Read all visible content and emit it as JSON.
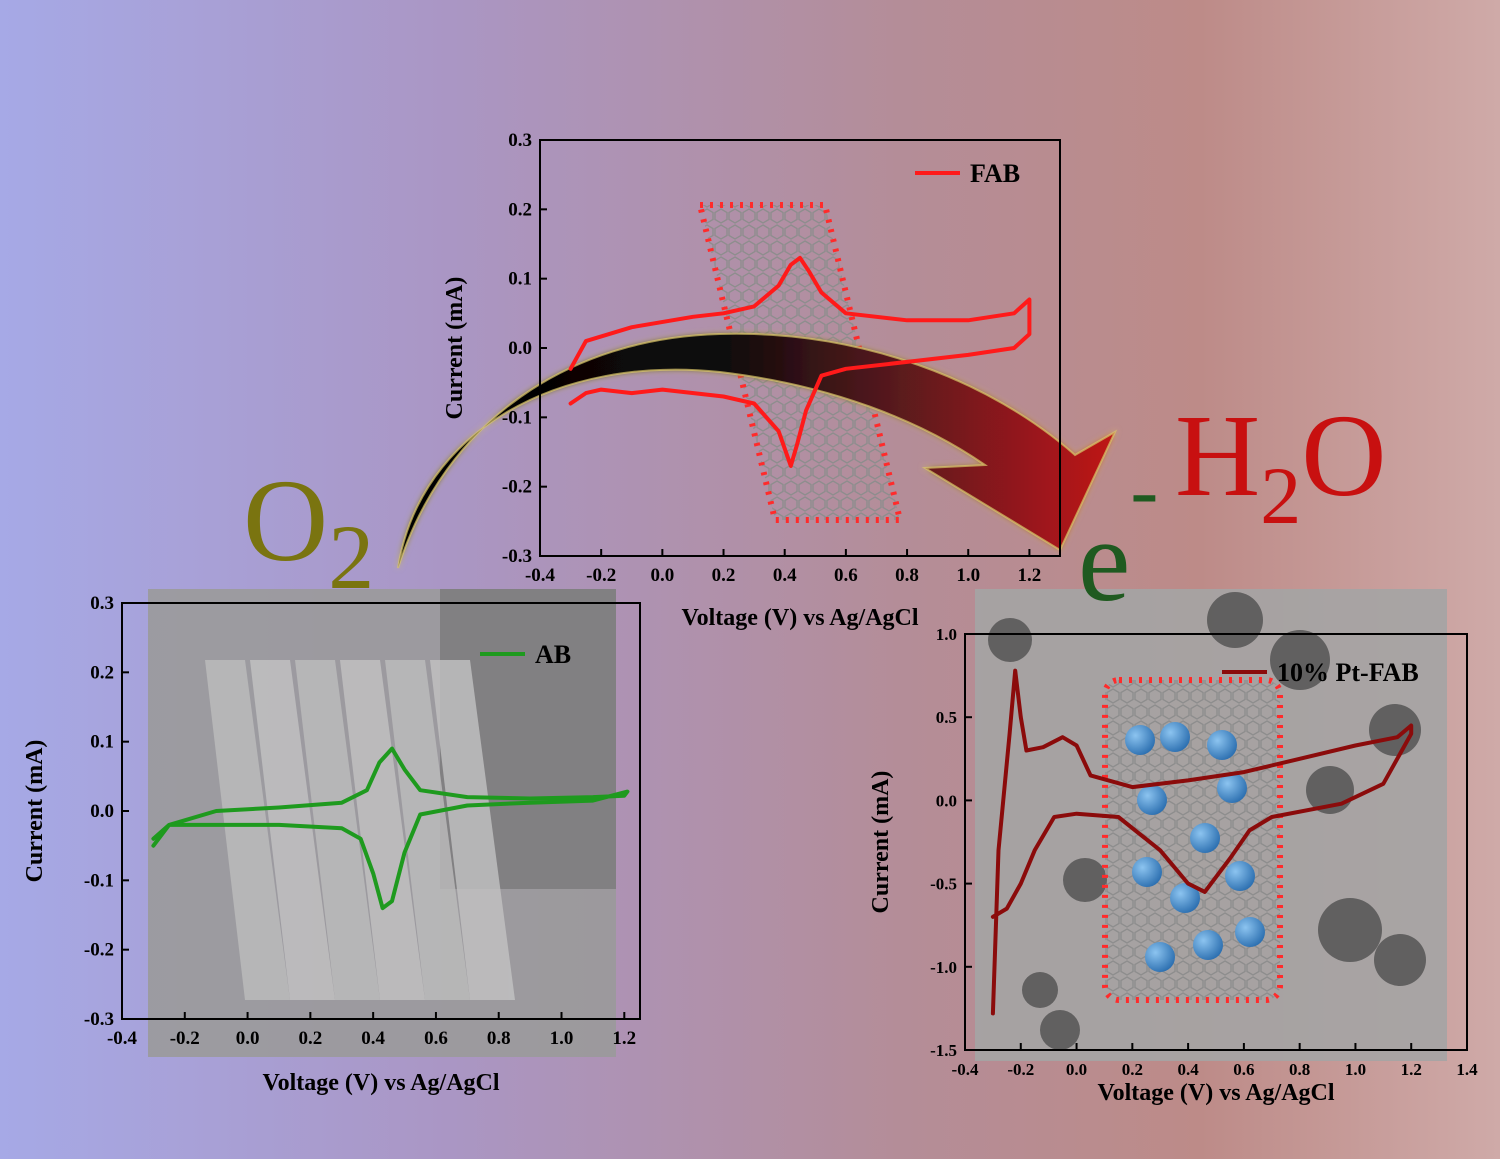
{
  "labels": {
    "o2_main": "O",
    "o2_sub": "2",
    "e_main": "e",
    "e_sup": "-",
    "h2o_h": "H",
    "h2o_sub": "2",
    "h2o_o": "O"
  },
  "colors": {
    "fab": "#ff1a1a",
    "ab": "#1e9a1e",
    "pt_fab": "#8b0b0b",
    "o2_text": "#7a7410",
    "e_text": "#1f5a20",
    "h2o_text": "#c81010",
    "pt_particle": "#3f86c8"
  },
  "chart_data": [
    {
      "id": "fab",
      "type": "line",
      "legend": [
        "FAB"
      ],
      "xlabel": "Voltage (V) vs Ag/AgCl",
      "ylabel": "Current (mA)",
      "xlim": [
        -0.4,
        1.3
      ],
      "ylim": [
        -0.3,
        0.3
      ],
      "xticks": [
        "-0.4",
        "-0.2",
        "0.0",
        "0.2",
        "0.4",
        "0.6",
        "0.8",
        "1.0",
        "1.2"
      ],
      "yticks": [
        "0.3",
        "0.2",
        "0.1",
        "0.0",
        "-0.1",
        "-0.2",
        "-0.3"
      ],
      "series": [
        {
          "name": "FAB",
          "x": [
            -0.3,
            -0.25,
            -0.1,
            0.1,
            0.2,
            0.3,
            0.38,
            0.42,
            0.45,
            0.48,
            0.52,
            0.6,
            0.8,
            1.0,
            1.15,
            1.2,
            1.2,
            1.15,
            1.0,
            0.8,
            0.6,
            0.52,
            0.47,
            0.44,
            0.42,
            0.38,
            0.3,
            0.2,
            0.0,
            -0.1,
            -0.2,
            -0.25,
            -0.3
          ],
          "y": [
            -0.03,
            0.01,
            0.03,
            0.045,
            0.05,
            0.06,
            0.09,
            0.12,
            0.13,
            0.11,
            0.08,
            0.05,
            0.04,
            0.04,
            0.05,
            0.07,
            0.02,
            0.0,
            -0.01,
            -0.02,
            -0.03,
            -0.04,
            -0.09,
            -0.14,
            -0.17,
            -0.12,
            -0.08,
            -0.07,
            -0.06,
            -0.065,
            -0.06,
            -0.065,
            -0.08
          ]
        }
      ]
    },
    {
      "id": "ab",
      "type": "line",
      "legend": [
        "AB"
      ],
      "xlabel": "Voltage (V) vs Ag/AgCl",
      "ylabel": "Current (mA)",
      "xlim": [
        -0.4,
        1.25
      ],
      "ylim": [
        -0.3,
        0.3
      ],
      "xticks": [
        "-0.4",
        "-0.2",
        "0.0",
        "0.2",
        "0.4",
        "0.6",
        "0.8",
        "1.0",
        "1.2"
      ],
      "yticks": [
        "0.3",
        "0.2",
        "0.1",
        "0.0",
        "-0.1",
        "-0.2",
        "-0.3"
      ],
      "series": [
        {
          "name": "AB",
          "x": [
            -0.3,
            -0.25,
            -0.1,
            0.1,
            0.3,
            0.38,
            0.42,
            0.46,
            0.5,
            0.55,
            0.7,
            0.9,
            1.1,
            1.2,
            1.21,
            1.1,
            0.9,
            0.7,
            0.55,
            0.5,
            0.46,
            0.43,
            0.4,
            0.36,
            0.3,
            0.1,
            -0.1,
            -0.25,
            -0.3
          ],
          "y": [
            -0.04,
            -0.02,
            0.0,
            0.005,
            0.012,
            0.03,
            0.07,
            0.09,
            0.06,
            0.03,
            0.02,
            0.018,
            0.02,
            0.022,
            0.028,
            0.015,
            0.012,
            0.008,
            -0.005,
            -0.06,
            -0.13,
            -0.14,
            -0.09,
            -0.04,
            -0.025,
            -0.02,
            -0.02,
            -0.02,
            -0.05
          ]
        }
      ]
    },
    {
      "id": "pt_fab",
      "type": "line",
      "legend": [
        "10% Pt-FAB"
      ],
      "xlabel": "Voltage (V) vs Ag/AgCl",
      "ylabel": "Current (mA)",
      "xlim": [
        -0.4,
        1.4
      ],
      "ylim": [
        -1.5,
        1.0
      ],
      "xticks": [
        "-0.4",
        "-0.2",
        "0.0",
        "0.2",
        "0.4",
        "0.6",
        "0.8",
        "1.0",
        "1.2",
        "1.4"
      ],
      "yticks": [
        "1.0",
        "0.5",
        "0.0",
        "-0.5",
        "-1.0",
        "-1.5"
      ],
      "series": [
        {
          "name": "10% Pt-FAB",
          "x": [
            -0.3,
            -0.28,
            -0.24,
            -0.22,
            -0.2,
            -0.18,
            -0.12,
            -0.05,
            0.0,
            0.05,
            0.2,
            0.4,
            0.6,
            0.8,
            1.0,
            1.15,
            1.2,
            1.2,
            1.1,
            0.95,
            0.7,
            0.62,
            0.55,
            0.46,
            0.4,
            0.3,
            0.15,
            0.0,
            -0.08,
            -0.15,
            -0.2,
            -0.25,
            -0.3
          ],
          "y": [
            -1.28,
            -0.3,
            0.4,
            0.78,
            0.5,
            0.3,
            0.32,
            0.38,
            0.33,
            0.15,
            0.08,
            0.12,
            0.17,
            0.25,
            0.33,
            0.38,
            0.45,
            0.4,
            0.1,
            -0.02,
            -0.1,
            -0.18,
            -0.35,
            -0.55,
            -0.5,
            -0.3,
            -0.1,
            -0.08,
            -0.1,
            -0.3,
            -0.5,
            -0.65,
            -0.7
          ]
        }
      ]
    }
  ]
}
